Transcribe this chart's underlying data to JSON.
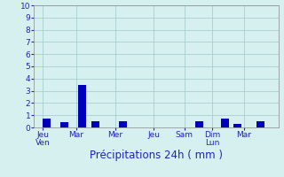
{
  "bar_data": [
    [
      0.3,
      0.7
    ],
    [
      1.0,
      0.4
    ],
    [
      1.7,
      3.5
    ],
    [
      2.2,
      0.5
    ],
    [
      3.3,
      0.5
    ],
    [
      6.3,
      0.5
    ],
    [
      7.3,
      0.75
    ],
    [
      7.8,
      0.3
    ],
    [
      8.7,
      0.5
    ]
  ],
  "bar_width": 0.32,
  "bar_color": "#0000bb",
  "xlabel": "Précipitations 24h ( mm )",
  "ylim": [
    0,
    10
  ],
  "xlim": [
    -0.2,
    9.4
  ],
  "yticks": [
    0,
    1,
    2,
    3,
    4,
    5,
    6,
    7,
    8,
    9,
    10
  ],
  "xtick_positions": [
    0.15,
    1.45,
    3.0,
    4.5,
    5.7,
    6.8,
    8.05
  ],
  "xtick_labels": [
    "JeuVen",
    "Mar",
    "Mer",
    "Jeu",
    "Sam",
    "Dim  Lun",
    "Mar"
  ],
  "background_color": "#d6f0f0",
  "grid_color": "#a0c8c8",
  "text_color": "#2222bb",
  "spine_color": "#888888",
  "tick_fontsize": 6.5,
  "xlabel_fontsize": 8.5,
  "grid_linewidth": 0.5,
  "spine_linewidth": 0.5
}
